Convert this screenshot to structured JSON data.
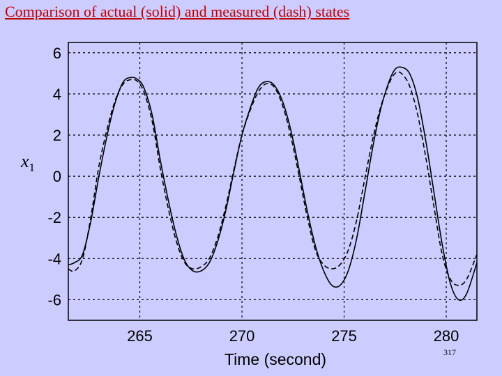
{
  "slide": {
    "title": "Comparison of actual (solid) and measured (dash) states",
    "page_number": "317"
  },
  "colors": {
    "background": "#ccccff",
    "title": "#c00000",
    "line": "#000000"
  },
  "chart_data": {
    "type": "line",
    "title": "",
    "xlabel": "Time (second)",
    "ylabel": "x",
    "ylabel_subscript": "1",
    "xlim": [
      261.5,
      281.5
    ],
    "ylim": [
      -7,
      6.5
    ],
    "xticks": [
      265,
      270,
      275,
      280
    ],
    "yticks": [
      6,
      4,
      2,
      0,
      -2,
      -4,
      -6
    ],
    "xtick_labels": [
      "265",
      "270",
      "275",
      "280"
    ],
    "ytick_labels": [
      "6",
      "4",
      "2",
      "0",
      "-2",
      "-4",
      "-6"
    ],
    "grid": true,
    "legend": "none",
    "series": [
      {
        "style": "solid",
        "x": [
          261.5,
          261.8,
          262.2,
          262.6,
          263.0,
          263.4,
          263.8,
          264.2,
          264.6,
          264.9,
          265.2,
          265.6,
          266.0,
          266.4,
          266.8,
          267.2,
          267.6,
          268.0,
          268.4,
          268.8,
          269.2,
          269.6,
          270.0,
          270.4,
          270.8,
          271.2,
          271.6,
          272.0,
          272.4,
          272.8,
          273.2,
          273.6,
          274.0,
          274.4,
          274.8,
          275.2,
          275.6,
          276.0,
          276.4,
          276.8,
          277.2,
          277.5,
          277.8,
          278.2,
          278.6,
          279.0,
          279.4,
          279.8,
          280.2,
          280.6,
          281.0,
          281.5
        ],
        "y": [
          -4.3,
          -4.2,
          -3.8,
          -2.2,
          0.0,
          2.0,
          3.6,
          4.6,
          4.8,
          4.7,
          4.3,
          3.0,
          0.8,
          -1.2,
          -2.9,
          -4.1,
          -4.6,
          -4.6,
          -4.2,
          -3.2,
          -1.7,
          0.2,
          2.0,
          3.3,
          4.3,
          4.6,
          4.4,
          3.6,
          2.2,
          0.3,
          -1.7,
          -3.4,
          -4.6,
          -5.3,
          -5.3,
          -4.6,
          -3.1,
          -0.9,
          1.4,
          3.3,
          4.6,
          5.2,
          5.3,
          5.0,
          3.8,
          1.7,
          -0.8,
          -3.3,
          -5.2,
          -6.0,
          -5.7,
          -4.2
        ]
      },
      {
        "style": "dash",
        "x": [
          261.5,
          261.8,
          262.2,
          262.6,
          263.0,
          263.4,
          263.8,
          264.2,
          264.6,
          264.9,
          265.2,
          265.6,
          266.0,
          266.4,
          266.8,
          267.2,
          267.6,
          268.0,
          268.4,
          268.8,
          269.2,
          269.6,
          270.0,
          270.4,
          270.8,
          271.2,
          271.6,
          272.0,
          272.4,
          272.8,
          273.2,
          273.6,
          274.0,
          274.4,
          274.8,
          275.2,
          275.6,
          276.0,
          276.4,
          276.8,
          277.2,
          277.5,
          277.8,
          278.2,
          278.6,
          279.0,
          279.4,
          279.8,
          280.2,
          280.6,
          281.0,
          281.5
        ],
        "y": [
          -4.5,
          -4.6,
          -4.0,
          -2.0,
          0.5,
          2.3,
          3.7,
          4.5,
          4.7,
          4.6,
          4.1,
          2.7,
          0.4,
          -1.6,
          -3.2,
          -4.2,
          -4.5,
          -4.4,
          -4.0,
          -3.0,
          -1.5,
          0.3,
          2.0,
          3.2,
          4.1,
          4.5,
          4.3,
          3.4,
          1.9,
          0.0,
          -2.0,
          -3.6,
          -4.3,
          -4.5,
          -4.3,
          -3.6,
          -2.2,
          -0.2,
          1.8,
          3.4,
          4.5,
          5.0,
          5.0,
          4.4,
          3.0,
          0.9,
          -1.5,
          -3.8,
          -5.0,
          -5.3,
          -5.0,
          -3.8
        ]
      }
    ]
  }
}
